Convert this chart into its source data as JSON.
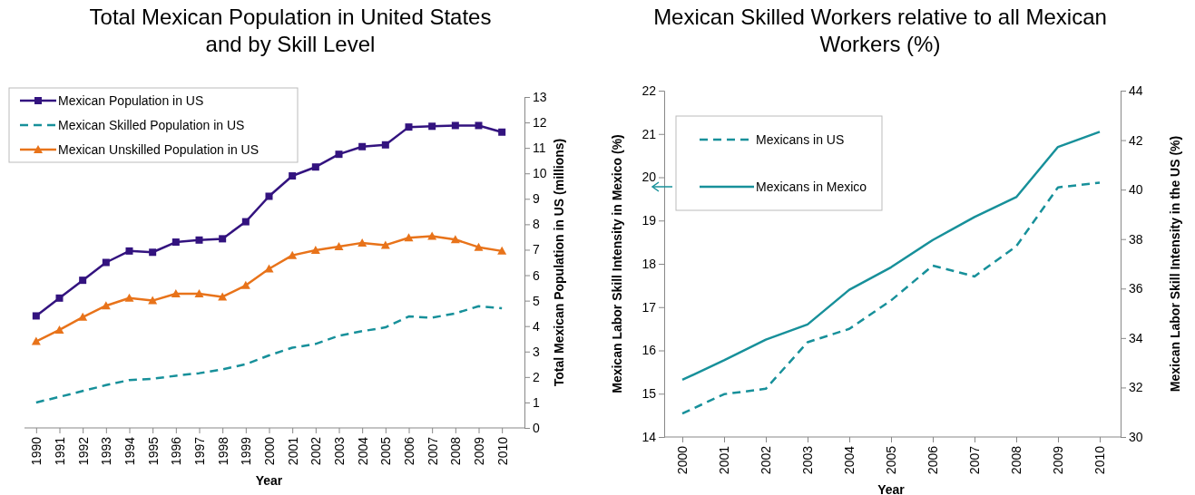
{
  "chart_data": [
    {
      "type": "line",
      "title": "Total Mexican Population in United States and by Skill Level",
      "xlabel": "Year",
      "y2label": "Total Mexican Population in US (millions)",
      "categories": [
        "1990",
        "1991",
        "1992",
        "1993",
        "1994",
        "1995",
        "1996",
        "1997",
        "1998",
        "1999",
        "2000",
        "2001",
        "2002",
        "2003",
        "2004",
        "2005",
        "2006",
        "2007",
        "2008",
        "2009",
        "2010"
      ],
      "y2lim": [
        0,
        13
      ],
      "y2ticks": [
        0,
        1,
        2,
        3,
        4,
        5,
        6,
        7,
        8,
        9,
        10,
        11,
        12,
        13
      ],
      "legend": "top left",
      "series": [
        {
          "name": "Mexican Population in US",
          "color": "#33137f",
          "marker": "square",
          "line_style": "solid",
          "axis": "y2",
          "values": [
            4.4,
            5.1,
            5.8,
            6.5,
            6.95,
            6.9,
            7.3,
            7.38,
            7.43,
            8.1,
            9.1,
            9.9,
            10.25,
            10.75,
            11.05,
            11.12,
            11.82,
            11.85,
            11.88,
            11.88,
            11.62
          ]
        },
        {
          "name": "Mexican Skilled Population in US",
          "color": "#17909a",
          "marker": "none",
          "line_style": "dashed",
          "axis": "y2",
          "values": [
            1.0,
            1.22,
            1.45,
            1.68,
            1.88,
            1.93,
            2.05,
            2.15,
            2.3,
            2.5,
            2.85,
            3.15,
            3.3,
            3.62,
            3.8,
            3.95,
            4.38,
            4.33,
            4.5,
            4.78,
            4.7
          ]
        },
        {
          "name": "Mexican Unskilled Population in US",
          "color": "#e8731a",
          "marker": "triangle",
          "line_style": "solid",
          "axis": "y2",
          "values": [
            3.4,
            3.85,
            4.35,
            4.8,
            5.1,
            5.0,
            5.27,
            5.27,
            5.15,
            5.6,
            6.25,
            6.78,
            6.98,
            7.12,
            7.27,
            7.18,
            7.47,
            7.53,
            7.4,
            7.1,
            6.95
          ]
        }
      ]
    },
    {
      "type": "line",
      "title": "Mexican Skilled Workers relative to all Mexican Workers (%)",
      "xlabel": "Year",
      "ylabel": "Mexican Labor Skill Intensity in Mexico (%)",
      "y2label": "Mexican Labor Skill Intensity in the US (%)",
      "categories": [
        "2000",
        "2001",
        "2002",
        "2003",
        "2004",
        "2005",
        "2006",
        "2007",
        "2008",
        "2009",
        "2010"
      ],
      "ylim": [
        14,
        22
      ],
      "yticks": [
        14,
        15,
        16,
        17,
        18,
        19,
        20,
        21,
        22
      ],
      "y2lim": [
        30,
        44
      ],
      "y2ticks": [
        30,
        32,
        34,
        36,
        38,
        40,
        42,
        44
      ],
      "legend": "top left",
      "series": [
        {
          "name": "Mexicans in US",
          "color": "#17909a",
          "marker": "none",
          "line_style": "dashed",
          "axis": "y2",
          "values": [
            30.95,
            31.73,
            31.95,
            33.83,
            34.37,
            35.52,
            36.93,
            36.49,
            37.71,
            40.09,
            40.28
          ]
        },
        {
          "name": "Mexicans in Mexico",
          "color": "#17909a",
          "marker": "none",
          "line_style": "solid",
          "axis": "y",
          "values": [
            15.32,
            15.77,
            16.25,
            16.6,
            17.4,
            17.92,
            18.55,
            19.08,
            19.54,
            20.7,
            21.05
          ]
        }
      ]
    }
  ]
}
